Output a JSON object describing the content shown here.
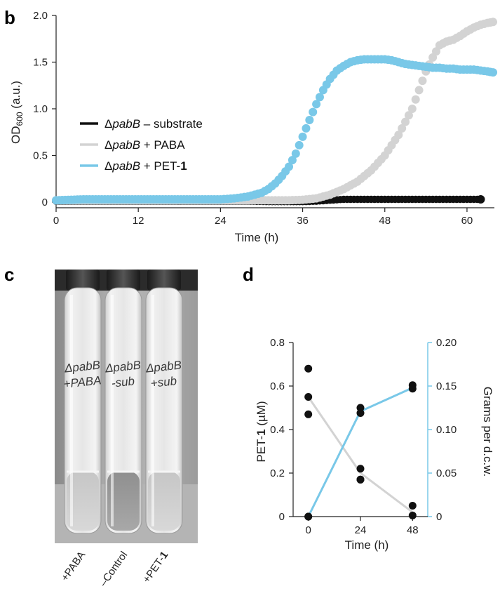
{
  "panels": {
    "b": "b",
    "c": "c",
    "d": "d"
  },
  "colors": {
    "black": "#111111",
    "grey": "#d3d3d3",
    "blue": "#79c8e8"
  },
  "chart_data": [
    {
      "id": "b",
      "type": "scatter",
      "xlabel": "Time (h)",
      "ylabel": "OD600 (a.u.)",
      "ylabel_main": "OD",
      "ylabel_sub": "600",
      "ylabel_unit": " (a.u.)",
      "xlim": [
        0,
        64
      ],
      "ylim": [
        0,
        2.0
      ],
      "xticks": [
        0,
        12,
        24,
        36,
        48,
        60
      ],
      "yticks": [
        0,
        0.5,
        1.0,
        1.5,
        2.0
      ],
      "ytick_labels": [
        "0",
        "0.5",
        "1.0",
        "1.5",
        "2.0"
      ],
      "legend_position": "middle-left",
      "series": [
        {
          "name": "ΔpabB – substrate",
          "name_delta": "Δ",
          "name_italic": "pabB",
          "name_rest": " – substrate",
          "color": "#111111",
          "points": [
            [
              0,
              0.01
            ],
            [
              4,
              0.01
            ],
            [
              8,
              0.01
            ],
            [
              12,
              0.01
            ],
            [
              16,
              0.01
            ],
            [
              20,
              0.01
            ],
            [
              24,
              0.01
            ],
            [
              28,
              0.01
            ],
            [
              32,
              0.005
            ],
            [
              36,
              0.005
            ],
            [
              38,
              0.01
            ],
            [
              40,
              0.02
            ],
            [
              42,
              0.03
            ],
            [
              44,
              0.03
            ],
            [
              46,
              0.03
            ],
            [
              48,
              0.03
            ],
            [
              50,
              0.03
            ],
            [
              52,
              0.03
            ],
            [
              54,
              0.03
            ],
            [
              56,
              0.03
            ],
            [
              58,
              0.03
            ],
            [
              60,
              0.03
            ],
            [
              62,
              0.03
            ]
          ]
        },
        {
          "name": "ΔpabB + PABA",
          "name_delta": "Δ",
          "name_italic": "pabB",
          "name_rest": " + PABA",
          "color": "#d3d3d3",
          "points": [
            [
              0,
              0.02
            ],
            [
              4,
              0.02
            ],
            [
              8,
              0.02
            ],
            [
              12,
              0.02
            ],
            [
              16,
              0.02
            ],
            [
              20,
              0.02
            ],
            [
              24,
              0.02
            ],
            [
              28,
              0.02
            ],
            [
              30,
              0.02
            ],
            [
              32,
              0.02
            ],
            [
              34,
              0.02
            ],
            [
              36,
              0.025
            ],
            [
              38,
              0.04
            ],
            [
              40,
              0.08
            ],
            [
              42,
              0.14
            ],
            [
              44,
              0.22
            ],
            [
              46,
              0.34
            ],
            [
              48,
              0.5
            ],
            [
              50,
              0.72
            ],
            [
              52,
              1.0
            ],
            [
              53,
              1.2
            ],
            [
              54,
              1.4
            ],
            [
              55,
              1.55
            ],
            [
              56,
              1.68
            ],
            [
              57,
              1.72
            ],
            [
              58,
              1.74
            ],
            [
              59,
              1.78
            ],
            [
              60,
              1.83
            ],
            [
              61,
              1.87
            ],
            [
              62,
              1.9
            ],
            [
              63,
              1.92
            ],
            [
              63.8,
              1.93
            ]
          ]
        },
        {
          "name": "ΔpabB + PET-1",
          "name_delta": "Δ",
          "name_italic": "pabB",
          "name_rest": " + PET-",
          "name_bold": "1",
          "color": "#79c8e8",
          "points": [
            [
              0,
              0.02
            ],
            [
              4,
              0.03
            ],
            [
              8,
              0.03
            ],
            [
              12,
              0.03
            ],
            [
              16,
              0.03
            ],
            [
              20,
              0.03
            ],
            [
              24,
              0.03
            ],
            [
              26,
              0.04
            ],
            [
              28,
              0.06
            ],
            [
              30,
              0.1
            ],
            [
              31,
              0.14
            ],
            [
              32,
              0.2
            ],
            [
              33,
              0.28
            ],
            [
              34,
              0.38
            ],
            [
              35,
              0.52
            ],
            [
              36,
              0.7
            ],
            [
              37,
              0.88
            ],
            [
              38,
              1.05
            ],
            [
              39,
              1.2
            ],
            [
              40,
              1.32
            ],
            [
              41,
              1.41
            ],
            [
              42,
              1.46
            ],
            [
              43,
              1.5
            ],
            [
              44,
              1.52
            ],
            [
              45,
              1.53
            ],
            [
              46,
              1.53
            ],
            [
              47,
              1.53
            ],
            [
              48,
              1.53
            ],
            [
              49,
              1.52
            ],
            [
              50,
              1.5
            ],
            [
              51,
              1.48
            ],
            [
              52,
              1.47
            ],
            [
              53,
              1.46
            ],
            [
              54,
              1.45
            ],
            [
              55,
              1.44
            ],
            [
              56,
              1.44
            ],
            [
              57,
              1.43
            ],
            [
              58,
              1.43
            ],
            [
              59,
              1.42
            ],
            [
              60,
              1.42
            ],
            [
              61,
              1.42
            ],
            [
              62,
              1.41
            ],
            [
              63,
              1.4
            ],
            [
              63.8,
              1.39
            ]
          ]
        }
      ]
    },
    {
      "id": "d",
      "type": "line",
      "xlabel": "Time (h)",
      "ylabel_left": "PET-1 (µM)",
      "ylabel_left_pre": "PET-",
      "ylabel_left_bold": "1",
      "ylabel_left_post": " (µM)",
      "ylabel_right": "Grams per d.c.w.",
      "x": [
        0,
        24,
        48
      ],
      "xlim": [
        -7,
        55
      ],
      "ylim_left": [
        0,
        0.8
      ],
      "ylim_right": [
        0,
        0.2
      ],
      "yticks_left": [
        0,
        0.2,
        0.4,
        0.6,
        0.8
      ],
      "yticks_left_labels": [
        "0",
        "0.2",
        "0.4",
        "0.6",
        "0.8"
      ],
      "yticks_right": [
        0,
        0.05,
        0.1,
        0.15,
        0.2
      ],
      "yticks_right_labels": [
        "0",
        "0.05",
        "0.10",
        "0.15",
        "0.20"
      ],
      "series": [
        {
          "axis": "left",
          "color": "#d3d3d3",
          "mean": [
            0.55,
            0.2,
            0.02
          ],
          "points": [
            [
              0,
              0.68
            ],
            [
              0,
              0.55
            ],
            [
              0,
              0.47
            ],
            [
              24,
              0.22
            ],
            [
              24,
              0.17
            ],
            [
              24,
              0.17
            ],
            [
              48,
              0.05
            ],
            [
              48,
              0.005
            ]
          ]
        },
        {
          "axis": "right",
          "color": "#79c8e8",
          "mean": [
            0.0,
            0.121,
            0.148
          ],
          "points": [
            [
              0,
              0.0
            ],
            [
              0,
              0.0
            ],
            [
              24,
              0.125
            ],
            [
              24,
              0.119
            ],
            [
              48,
              0.151
            ],
            [
              48,
              0.147
            ]
          ]
        }
      ]
    }
  ],
  "photo": {
    "tube_handwriting": [
      "ΔpabB",
      "+PABA",
      "ΔpabB",
      "-sub",
      "ΔpabB",
      "+sub"
    ],
    "tube_labels": [
      "+PABA",
      "–Control",
      "+PET-1"
    ],
    "tube_label_bold_suffix": [
      "",
      "",
      "1"
    ],
    "tube_label_prefix": [
      "+PABA",
      "–Control",
      "+PET-"
    ]
  }
}
